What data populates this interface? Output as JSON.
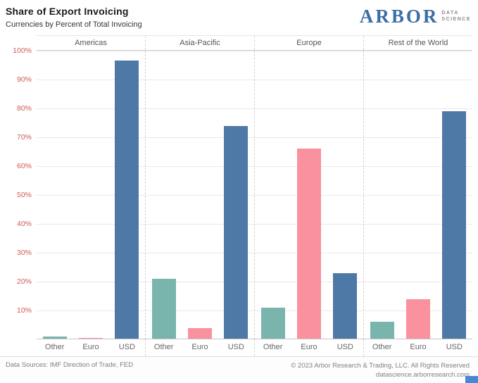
{
  "header": {
    "title": "Share of Export Invoicing",
    "subtitle": "Currencies by Percent of Total Invoicing",
    "logo": {
      "brand": "ARBOR",
      "tagline_line1": "DATA",
      "tagline_line2": "SCIENCE"
    }
  },
  "chart_data": {
    "type": "bar",
    "title": "Share of Export Invoicing",
    "subtitle": "Currencies by Percent of Total Invoicing",
    "panels": [
      "Americas",
      "Asia-Pacific",
      "Europe",
      "Rest of the World"
    ],
    "categories": [
      "Other",
      "Euro",
      "USD"
    ],
    "series": [
      {
        "name": "Americas",
        "values": [
          1,
          0.5,
          96.5
        ]
      },
      {
        "name": "Asia-Pacific",
        "values": [
          21,
          4,
          74
        ]
      },
      {
        "name": "Europe",
        "values": [
          11,
          66,
          23
        ]
      },
      {
        "name": "Rest of the World",
        "values": [
          6,
          14,
          79
        ]
      }
    ],
    "ylim": [
      0,
      100
    ],
    "yticks": [
      10,
      20,
      30,
      40,
      50,
      60,
      70,
      80,
      90,
      100
    ],
    "ytick_suffix": "%",
    "grid": true,
    "legend": "none",
    "category_colors": [
      "#79b5ac",
      "#f9919f",
      "#4e79a7"
    ],
    "tick_color": "#ce5a57"
  },
  "footer": {
    "data_sources": "Data Sources: IMF Direction of Trade, FED",
    "copyright": "© 2023 Arbor Research & Trading, LLC. All Rights Reserved",
    "website": "datascience.arborresearch.com"
  }
}
